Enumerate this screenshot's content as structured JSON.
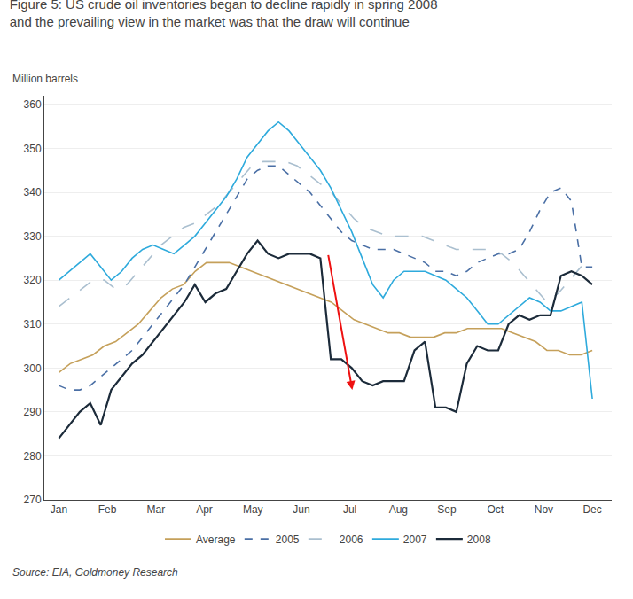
{
  "chart_data": {
    "type": "line",
    "title": [
      "Figure 5: US crude oil inventories began to decline rapidly in spring 2008",
      "and the prevailing view in the market was that the draw will continue"
    ],
    "subtitle": "Million barrels",
    "source": "Source: EIA, Goldmoney Research",
    "xlim": [
      -0.3,
      11.4
    ],
    "xticks": [
      {
        "value": 0,
        "label": "Jan"
      },
      {
        "value": 1,
        "label": "Feb"
      },
      {
        "value": 2,
        "label": "Mar"
      },
      {
        "value": 3,
        "label": "Apr"
      },
      {
        "value": 4,
        "label": "May"
      },
      {
        "value": 5,
        "label": "Jun"
      },
      {
        "value": 6,
        "label": "Jul"
      },
      {
        "value": 7,
        "label": "Aug"
      },
      {
        "value": 8,
        "label": "Sep"
      },
      {
        "value": 9,
        "label": "Oct"
      },
      {
        "value": 10,
        "label": "Nov"
      },
      {
        "value": 11,
        "label": "Dec"
      }
    ],
    "ylim": [
      270,
      362
    ],
    "yticks": [
      270,
      280,
      290,
      300,
      310,
      320,
      330,
      340,
      350,
      360
    ],
    "grid": true,
    "legend": "bottom",
    "series": [
      {
        "name": "Average",
        "color": "#C5A05A",
        "line_style": "solid",
        "x": [
          0,
          0.234043,
          0.468085,
          0.702128,
          0.93617,
          1.170213,
          1.404255,
          1.638298,
          1.87234,
          2.106383,
          2.340426,
          2.574468,
          2.808511,
          3.042553,
          3.276596,
          3.510638,
          3.744681,
          3.978723,
          4.212766,
          4.446809,
          4.680851,
          4.914894,
          5.148936,
          5.382979,
          5.617021,
          5.851064,
          6.085106,
          6.319149,
          6.553191,
          6.787234,
          7.021277,
          7.255319,
          7.489362,
          7.723404,
          7.957447,
          8.191489,
          8.425532,
          8.659574,
          8.893617,
          9.12766,
          9.361702,
          9.595745,
          9.829787,
          10.06383,
          10.297872,
          10.531915,
          10.765957,
          11
        ],
        "values": [
          299,
          301,
          302,
          303,
          305,
          306,
          308,
          310,
          313,
          316,
          318,
          319,
          322,
          324,
          324,
          324,
          323,
          322,
          321,
          320,
          319,
          318,
          317,
          316,
          315,
          313,
          311,
          310,
          309,
          308,
          308,
          307,
          307,
          307,
          308,
          308,
          309,
          309,
          309,
          309,
          308,
          307,
          306,
          304,
          304,
          303,
          303,
          304
        ]
      },
      {
        "name": "2005",
        "color": "#4A6FA5",
        "line_style": "dash",
        "x": [
          0,
          0.215686,
          0.431373,
          0.647059,
          0.862745,
          1.078431,
          1.294118,
          1.509804,
          1.72549,
          1.941176,
          2.156863,
          2.372549,
          2.588235,
          2.803922,
          3.019608,
          3.235294,
          3.45098,
          3.666667,
          3.882353,
          4.098039,
          4.313725,
          4.529412,
          4.745098,
          4.960784,
          5.176471,
          5.392157,
          5.607843,
          5.823529,
          6.039216,
          6.254902,
          6.470588,
          6.686275,
          6.901961,
          7.117647,
          7.333333,
          7.54902,
          7.764706,
          7.980392,
          8.196078,
          8.411765,
          8.627451,
          8.843137,
          9.058824,
          9.27451,
          9.490196,
          9.705882,
          9.921569,
          10.137255,
          10.352941,
          10.568627,
          10.784314,
          11
        ],
        "values": [
          296,
          295,
          295,
          296,
          298,
          300,
          302,
          304,
          307,
          310,
          313,
          316,
          319,
          323,
          327,
          331,
          335,
          339,
          343,
          345,
          346,
          346,
          344,
          342,
          340,
          337,
          334,
          331,
          329,
          328,
          327,
          327,
          327,
          326,
          325,
          324,
          322,
          322,
          321,
          322,
          324,
          325,
          326,
          326,
          327,
          331,
          336,
          340,
          341,
          338,
          323,
          323
        ]
      },
      {
        "name": "2006",
        "color": "#AABFCF",
        "line_style": "longdash",
        "x": [
          0,
          0.234043,
          0.468085,
          0.702128,
          0.93617,
          1.170213,
          1.404255,
          1.638298,
          1.87234,
          2.106383,
          2.340426,
          2.574468,
          2.808511,
          3.042553,
          3.276596,
          3.510638,
          3.744681,
          3.978723,
          4.212766,
          4.446809,
          4.680851,
          4.914894,
          5.148936,
          5.382979,
          5.617021,
          5.851064,
          6.085106,
          6.319149,
          6.553191,
          6.787234,
          7.021277,
          7.255319,
          7.489362,
          7.723404,
          7.957447,
          8.191489,
          8.425532,
          8.659574,
          8.893617,
          9.12766,
          9.361702,
          9.595745,
          9.829787,
          10.06383,
          10.297872,
          10.531915,
          10.765957,
          11
        ],
        "values": [
          314,
          316,
          318,
          320,
          320,
          318,
          319,
          322,
          325,
          328,
          330,
          332,
          333,
          335,
          337,
          340,
          343,
          346,
          347,
          347,
          347,
          346,
          344,
          342,
          340,
          337,
          334,
          332,
          331,
          330,
          330,
          330,
          330,
          329,
          328,
          327,
          327,
          327,
          327,
          326,
          324,
          321,
          318,
          315,
          317,
          320,
          323,
          322
        ]
      },
      {
        "name": "2007",
        "color": "#2EAADC",
        "line_style": "solid",
        "x": [
          0,
          0.215686,
          0.431373,
          0.647059,
          0.862745,
          1.078431,
          1.294118,
          1.509804,
          1.72549,
          1.941176,
          2.156863,
          2.372549,
          2.588235,
          2.803922,
          3.019608,
          3.235294,
          3.45098,
          3.666667,
          3.882353,
          4.098039,
          4.313725,
          4.529412,
          4.745098,
          4.960784,
          5.176471,
          5.392157,
          5.607843,
          5.823529,
          6.039216,
          6.254902,
          6.470588,
          6.686275,
          6.901961,
          7.117647,
          7.333333,
          7.54902,
          7.764706,
          7.980392,
          8.196078,
          8.411765,
          8.627451,
          8.843137,
          9.058824,
          9.27451,
          9.490196,
          9.705882,
          9.921569,
          10.137255,
          10.352941,
          10.568627,
          10.784314,
          11
        ],
        "values": [
          320,
          322,
          324,
          326,
          323,
          320,
          322,
          325,
          327,
          328,
          327,
          326,
          328,
          330,
          333,
          336,
          339,
          343,
          348,
          351,
          354,
          356,
          354,
          351,
          348,
          345,
          341,
          336,
          331,
          325,
          319,
          316,
          320,
          322,
          322,
          322,
          321,
          320,
          318,
          316,
          313,
          310,
          310,
          312,
          314,
          316,
          315,
          313,
          313,
          314,
          315,
          293
        ]
      },
      {
        "name": "2008",
        "color": "#1C2B3A",
        "line_style": "solid",
        "x": [
          0,
          0.215686,
          0.431373,
          0.647059,
          0.862745,
          1.078431,
          1.294118,
          1.509804,
          1.72549,
          1.941176,
          2.156863,
          2.372549,
          2.588235,
          2.803922,
          3.019608,
          3.235294,
          3.45098,
          3.666667,
          3.882353,
          4.098039,
          4.313725,
          4.529412,
          4.745098,
          4.960784,
          5.176471,
          5.392157,
          5.607843,
          5.823529,
          6.039216,
          6.254902,
          6.470588,
          6.686275,
          6.901961,
          7.117647,
          7.333333,
          7.54902,
          7.764706,
          7.980392,
          8.196078,
          8.411765,
          8.627451,
          8.843137,
          9.058824,
          9.27451,
          9.490196,
          9.705882,
          9.921569,
          10.137255,
          10.352941,
          10.568627,
          10.784314,
          11
        ],
        "values": [
          284,
          287,
          290,
          292,
          287,
          295,
          298,
          301,
          303,
          306,
          309,
          312,
          315,
          319,
          315,
          317,
          318,
          322,
          326,
          329,
          326,
          325,
          326,
          326,
          326,
          325,
          302,
          302,
          300,
          297,
          296,
          297,
          297,
          297,
          304,
          306,
          291,
          291,
          290,
          301,
          305,
          304,
          304,
          310,
          312,
          311,
          312,
          312,
          321,
          322,
          321,
          319
        ]
      }
    ],
    "arrows": [
      {
        "x_start": 5.55,
        "y_start": 326,
        "x_end": 6.05,
        "y_end": 295,
        "color": "#EE1111"
      }
    ]
  }
}
